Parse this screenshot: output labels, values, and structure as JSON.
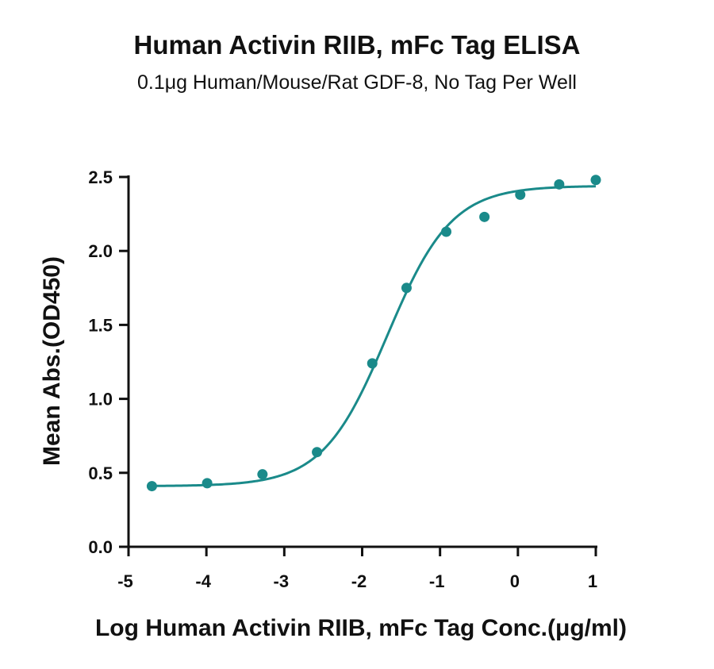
{
  "chart_data": {
    "type": "scatter",
    "title": "Human Activin RIIB, mFc Tag ELISA",
    "subtitle": "0.1μg Human/Mouse/Rat GDF-8, No Tag Per Well",
    "xlabel": "Log Human Activin RIIB, mFc Tag Conc.(μg/ml)",
    "ylabel": "Mean Abs.(OD450)",
    "xlim": [
      -5,
      1
    ],
    "ylim": [
      0,
      2.5
    ],
    "x_ticks": [
      -5,
      -4,
      -3,
      -2,
      -1,
      0,
      1
    ],
    "x_tick_labels": [
      "-5",
      "-4",
      "-3",
      "-2",
      "-1",
      "0",
      "1"
    ],
    "y_ticks": [
      0,
      0.5,
      1.0,
      1.5,
      2.0,
      2.5
    ],
    "y_tick_labels": [
      "0.0",
      "0.5",
      "1.0",
      "1.5",
      "2.0",
      "2.5"
    ],
    "grid": false,
    "color": "#1a8a8a",
    "series": [
      {
        "x": [
          -4.7,
          -3.99,
          -3.28,
          -2.58,
          -1.87,
          -1.43,
          -0.92,
          -0.43,
          0.03,
          0.53,
          1.0
        ],
        "y": [
          0.41,
          0.43,
          0.49,
          0.64,
          1.24,
          1.75,
          2.13,
          2.23,
          2.38,
          2.45,
          2.48
        ]
      }
    ],
    "fit_curve": {
      "model": "4PL",
      "bottom": 0.41,
      "top": 2.44,
      "log_ec50": -1.68,
      "hill_slope": 1.05
    }
  }
}
